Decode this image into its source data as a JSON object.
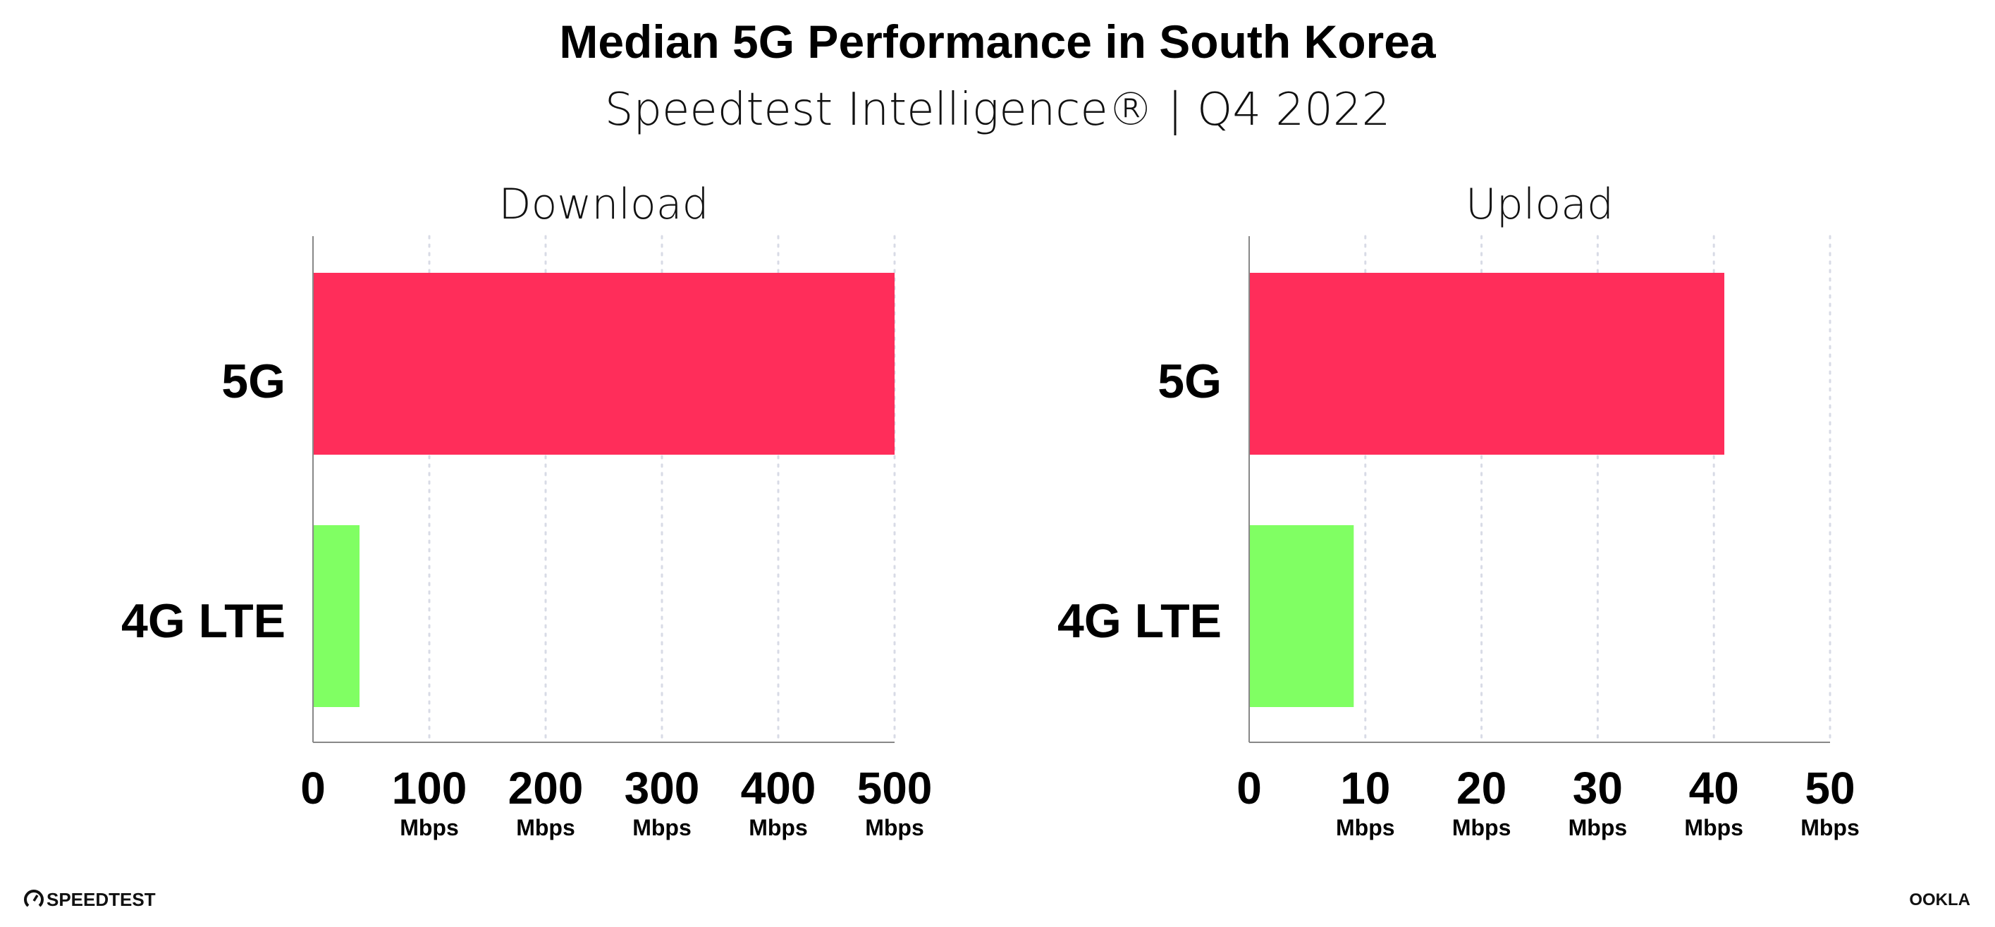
{
  "title": "Median 5G Performance in South Korea",
  "subtitle": "Speedtest Intelligence® | Q4 2022",
  "footer": {
    "left_logo": "SPEEDTEST",
    "right_logo": "OOKLA"
  },
  "colors": {
    "5G": "#ff2d5a",
    "4G LTE": "#80ff63",
    "grid": "#d8dbe6",
    "axis": "#888888"
  },
  "chart_data": [
    {
      "type": "bar",
      "orientation": "horizontal",
      "title": "Download",
      "categories": [
        "5G",
        "4G LTE"
      ],
      "values": [
        500,
        40
      ],
      "xlim": [
        0,
        500
      ],
      "ticks": [
        0,
        100,
        200,
        300,
        400,
        500
      ],
      "tick_labels": [
        "0",
        "100",
        "200",
        "300",
        "400",
        "500"
      ],
      "unit": "Mbps",
      "grid": "vertical dotted"
    },
    {
      "type": "bar",
      "orientation": "horizontal",
      "title": "Upload",
      "categories": [
        "5G",
        "4G LTE"
      ],
      "values": [
        40.9,
        9.0
      ],
      "xlim": [
        0,
        50
      ],
      "ticks": [
        0,
        10,
        20,
        30,
        40,
        50
      ],
      "tick_labels": [
        "0",
        "10",
        "20",
        "30",
        "40",
        "50"
      ],
      "unit": "Mbps",
      "grid": "vertical dotted"
    }
  ]
}
